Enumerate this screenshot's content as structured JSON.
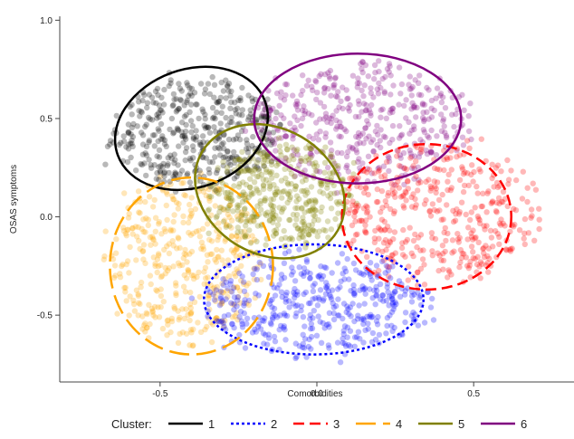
{
  "chart_data": {
    "type": "scatter",
    "title": "",
    "xlabel": "Comorbidities",
    "ylabel": "OSAS symptoms",
    "xlim": [
      -0.82,
      0.82
    ],
    "ylim": [
      -0.84,
      1.02
    ],
    "x_ticks": [
      -0.5,
      0.0,
      0.5
    ],
    "x_tick_labels": [
      "-0.5",
      "0.0",
      "0.5"
    ],
    "y_ticks": [
      1.0,
      0.5,
      0.0,
      -0.5
    ],
    "y_tick_labels": [
      "1.0",
      "0.5",
      "0.0",
      "-0.5"
    ],
    "grid": false,
    "legend": {
      "title": "Cluster:",
      "position": "bottom"
    },
    "series": [
      {
        "name": "1",
        "color": "#000000",
        "line_style": "solid",
        "ellipse": {
          "cx": -0.4,
          "cy": 0.45,
          "rx": 0.25,
          "ry": 0.3
        },
        "spread": {
          "cx": -0.38,
          "cy": 0.42,
          "rx": 0.25,
          "ry": 0.26
        }
      },
      {
        "name": "2",
        "color": "#0000ff",
        "line_style": "dotted",
        "ellipse": {
          "cx": -0.01,
          "cy": -0.42,
          "rx": 0.35,
          "ry": 0.28
        },
        "spread": {
          "cx": 0.0,
          "cy": -0.45,
          "rx": 0.33,
          "ry": 0.24
        }
      },
      {
        "name": "3",
        "color": "#ff0000",
        "line_style": "dashed",
        "ellipse": {
          "cx": 0.35,
          "cy": 0.0,
          "rx": 0.27,
          "ry": 0.37
        },
        "spread": {
          "cx": 0.38,
          "cy": 0.02,
          "rx": 0.3,
          "ry": 0.33
        }
      },
      {
        "name": "4",
        "color": "#ffa500",
        "line_style": "longdash",
        "ellipse": {
          "cx": -0.4,
          "cy": -0.25,
          "rx": 0.26,
          "ry": 0.45
        },
        "spread": {
          "cx": -0.42,
          "cy": -0.22,
          "rx": 0.22,
          "ry": 0.4
        }
      },
      {
        "name": "5",
        "color": "#808000",
        "line_style": "solid",
        "ellipse": {
          "cx": -0.15,
          "cy": 0.13,
          "rx": 0.25,
          "ry": 0.32
        },
        "spread": {
          "cx": -0.12,
          "cy": 0.12,
          "rx": 0.22,
          "ry": 0.25
        }
      },
      {
        "name": "6",
        "color": "#800080",
        "line_style": "solid",
        "ellipse": {
          "cx": 0.13,
          "cy": 0.5,
          "rx": 0.33,
          "ry": 0.33
        },
        "spread": {
          "cx": 0.15,
          "cy": 0.48,
          "rx": 0.32,
          "ry": 0.3
        }
      }
    ]
  }
}
